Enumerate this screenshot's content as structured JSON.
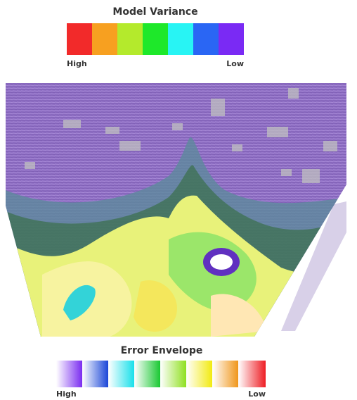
{
  "legends": [
    {
      "title": "Model Variance",
      "low_label": "Low",
      "high_label": "High"
    },
    {
      "title": "Error Envelope",
      "low_label": "Low",
      "high_label": "High"
    }
  ]
}
